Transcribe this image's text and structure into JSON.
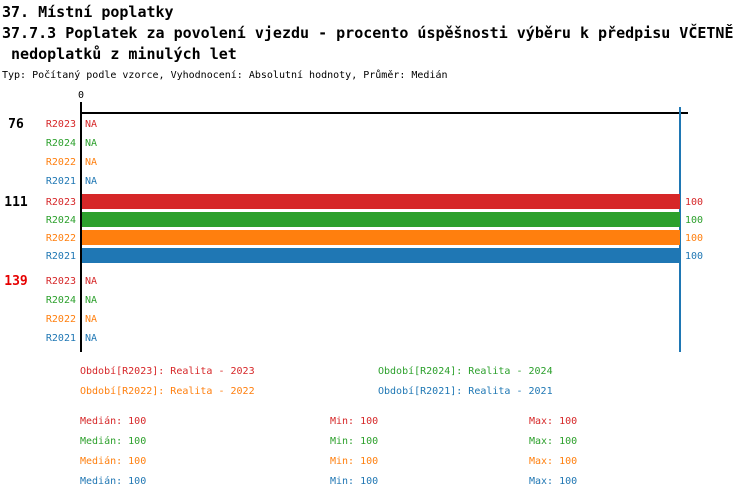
{
  "title": {
    "line1": "37. Místní poplatky",
    "line2": "37.7.3 Poplatek za povolení vjezdu - procento úspěšnosti výběru k předpisu VČETNĚ",
    "line3": " nedoplatků z minulých let",
    "subtitle": "Typ: Počítaný podle vzorce, Vyhodnocení: Absolutní hodnoty, Průměr: Medián"
  },
  "colors": {
    "r2023": "#d62728",
    "r2024": "#2ca02c",
    "r2022": "#ff7f0e",
    "r2021": "#1f77b4",
    "alert": "#e60000",
    "axis": "#000000",
    "median_line": "#1f77b4"
  },
  "chart_data": {
    "type": "bar",
    "orientation": "horizontal",
    "axis_tick": "0",
    "xlim": [
      0,
      100
    ],
    "median_reference_value": 100,
    "series_order": [
      "R2023",
      "R2024",
      "R2022",
      "R2021"
    ],
    "groups": [
      {
        "label": "76",
        "label_color": "#000000",
        "rows": [
          {
            "series": "R2023",
            "color": "#d62728",
            "value": null,
            "display": "NA"
          },
          {
            "series": "R2024",
            "color": "#2ca02c",
            "value": null,
            "display": "NA"
          },
          {
            "series": "R2022",
            "color": "#ff7f0e",
            "value": null,
            "display": "NA"
          },
          {
            "series": "R2021",
            "color": "#1f77b4",
            "value": null,
            "display": "NA"
          }
        ]
      },
      {
        "label": "111",
        "label_color": "#000000",
        "rows": [
          {
            "series": "R2023",
            "color": "#d62728",
            "value": 100,
            "display": "100"
          },
          {
            "series": "R2024",
            "color": "#2ca02c",
            "value": 100,
            "display": "100"
          },
          {
            "series": "R2022",
            "color": "#ff7f0e",
            "value": 100,
            "display": "100"
          },
          {
            "series": "R2021",
            "color": "#1f77b4",
            "value": 100,
            "display": "100"
          }
        ]
      },
      {
        "label": "139",
        "label_color": "#e60000",
        "rows": [
          {
            "series": "R2023",
            "color": "#d62728",
            "value": null,
            "display": "NA"
          },
          {
            "series": "R2024",
            "color": "#2ca02c",
            "value": null,
            "display": "NA"
          },
          {
            "series": "R2022",
            "color": "#ff7f0e",
            "value": null,
            "display": "NA"
          },
          {
            "series": "R2021",
            "color": "#1f77b4",
            "value": null,
            "display": "NA"
          }
        ]
      }
    ]
  },
  "legend": {
    "items": [
      {
        "label": "Období[R2023]: Realita - 2023",
        "color": "#d62728"
      },
      {
        "label": "Období[R2024]: Realita - 2024",
        "color": "#2ca02c"
      },
      {
        "label": "Období[R2022]: Realita - 2022",
        "color": "#ff7f0e"
      },
      {
        "label": "Období[R2021]: Realita - 2021",
        "color": "#1f77b4"
      }
    ]
  },
  "stats": {
    "rows": [
      {
        "median": "Medián: 100",
        "min": "Min: 100",
        "max": "Max: 100",
        "color": "#d62728"
      },
      {
        "median": "Medián: 100",
        "min": "Min: 100",
        "max": "Max: 100",
        "color": "#2ca02c"
      },
      {
        "median": "Medián: 100",
        "min": "Min: 100",
        "max": "Max: 100",
        "color": "#ff7f0e"
      },
      {
        "median": "Medián: 100",
        "min": "Min: 100",
        "max": "Max: 100",
        "color": "#1f77b4"
      }
    ]
  }
}
